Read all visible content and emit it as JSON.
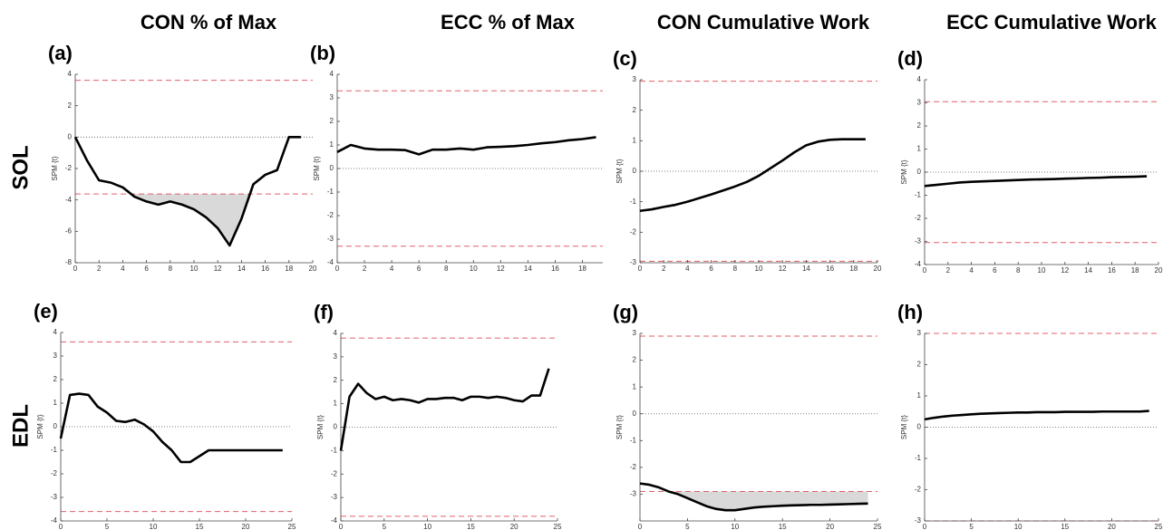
{
  "column_titles": [
    "CON % of Max",
    "ECC % of Max",
    "CON Cumulative Work",
    "ECC Cumulative Work"
  ],
  "row_labels": [
    "SOL",
    "EDL"
  ],
  "chart_data": [
    {
      "type": "line",
      "title": "(a)",
      "ylabel": "SPM {t}",
      "color": "#000000",
      "x": [
        0,
        1,
        2,
        3,
        4,
        5,
        6,
        7,
        8,
        9,
        10,
        11,
        12,
        13,
        14,
        15,
        16,
        17,
        18,
        19
      ],
      "values": [
        0,
        -1.5,
        -2.75,
        -2.9,
        -3.2,
        -3.8,
        -4.1,
        -4.3,
        -4.1,
        -4.3,
        -4.6,
        -5.1,
        -5.8,
        -6.9,
        -5.2,
        -3.0,
        -2.4,
        -2.1,
        0,
        0
      ],
      "xlim": [
        0,
        20
      ],
      "xticks": [
        0,
        2,
        4,
        6,
        8,
        10,
        12,
        14,
        16,
        18,
        20
      ],
      "ylim": [
        -8,
        4
      ],
      "yticks": [
        -8,
        -6,
        -4,
        -2,
        0,
        2,
        4
      ],
      "thresholds": [
        3.62,
        -3.62
      ],
      "reference_line": 0
    },
    {
      "type": "line",
      "title": "(b)",
      "ylabel": "SPM {t}",
      "color": "#000000",
      "x": [
        0,
        1,
        2,
        3,
        4,
        5,
        6,
        7,
        8,
        9,
        10,
        11,
        12,
        13,
        14,
        15,
        16,
        17,
        18,
        19
      ],
      "values": [
        0.7,
        1.0,
        0.85,
        0.8,
        0.8,
        0.78,
        0.6,
        0.8,
        0.8,
        0.85,
        0.8,
        0.9,
        0.92,
        0.95,
        1.0,
        1.07,
        1.12,
        1.2,
        1.25,
        1.33
      ],
      "xlim": [
        0,
        19.5
      ],
      "xticks": [
        0,
        2,
        4,
        6,
        8,
        10,
        12,
        14,
        16,
        18
      ],
      "ylim": [
        -4,
        4
      ],
      "yticks": [
        -4,
        -3,
        -2,
        -1,
        0,
        1,
        2,
        3,
        4
      ],
      "thresholds": [
        3.3,
        -3.3
      ],
      "reference_line": 0
    },
    {
      "type": "line",
      "title": "(c)",
      "ylabel": "SPM {t}",
      "color": "#000000",
      "x": [
        0,
        1,
        2,
        3,
        4,
        5,
        6,
        7,
        8,
        9,
        10,
        11,
        12,
        13,
        14,
        15,
        16,
        17,
        18,
        19
      ],
      "values": [
        -1.3,
        -1.25,
        -1.17,
        -1.1,
        -1.0,
        -0.88,
        -0.76,
        -0.63,
        -0.5,
        -0.35,
        -0.15,
        0.1,
        0.35,
        0.62,
        0.85,
        0.97,
        1.03,
        1.05,
        1.05,
        1.05
      ],
      "xlim": [
        0,
        20
      ],
      "xticks": [
        0,
        2,
        4,
        6,
        8,
        10,
        12,
        14,
        16,
        18,
        20
      ],
      "ylim": [
        -3,
        3
      ],
      "yticks": [
        -3,
        -2,
        -1,
        0,
        1,
        2,
        3
      ],
      "thresholds": [
        2.95,
        -2.95
      ],
      "reference_line": 0
    },
    {
      "type": "line",
      "title": "(d)",
      "ylabel": "SPM {t}",
      "color": "#000000",
      "x": [
        0,
        1,
        2,
        3,
        4,
        5,
        6,
        7,
        8,
        9,
        10,
        11,
        12,
        13,
        14,
        15,
        16,
        17,
        18,
        19
      ],
      "values": [
        -0.6,
        -0.55,
        -0.5,
        -0.45,
        -0.42,
        -0.4,
        -0.38,
        -0.36,
        -0.34,
        -0.32,
        -0.31,
        -0.3,
        -0.28,
        -0.27,
        -0.25,
        -0.24,
        -0.22,
        -0.21,
        -0.2,
        -0.18
      ],
      "xlim": [
        0,
        20
      ],
      "xticks": [
        0,
        2,
        4,
        6,
        8,
        10,
        12,
        14,
        16,
        18,
        20
      ],
      "ylim": [
        -4,
        4
      ],
      "yticks": [
        -4,
        -3,
        -2,
        -1,
        0,
        1,
        2,
        3,
        4
      ],
      "thresholds": [
        3.05,
        -3.05
      ],
      "reference_line": 0
    },
    {
      "type": "line",
      "title": "(e)",
      "ylabel": "SPM {t}",
      "color": "#000000",
      "x": [
        0,
        1,
        2,
        3,
        4,
        5,
        6,
        7,
        8,
        9,
        10,
        11,
        12,
        13,
        14,
        15,
        16,
        17,
        18,
        19,
        20,
        21,
        22,
        23,
        24
      ],
      "values": [
        -0.5,
        1.35,
        1.4,
        1.35,
        0.85,
        0.6,
        0.25,
        0.2,
        0.3,
        0.1,
        -0.2,
        -0.65,
        -1.0,
        -1.5,
        -1.5,
        -1.25,
        -1.0,
        -1.0,
        -1.0,
        -1.0,
        -1.0,
        -1.0,
        -1.0,
        -1.0,
        -1.0
      ],
      "xlim": [
        0,
        25
      ],
      "xticks": [
        0,
        5,
        10,
        15,
        20,
        25
      ],
      "ylim": [
        -4,
        4
      ],
      "yticks": [
        -4,
        -3,
        -2,
        -1,
        0,
        1,
        2,
        3,
        4
      ],
      "thresholds": [
        3.6,
        -3.6
      ],
      "reference_line": 0
    },
    {
      "type": "line",
      "title": "(f)",
      "ylabel": "SPM {t}",
      "color": "#000000",
      "x": [
        0,
        1,
        2,
        3,
        4,
        5,
        6,
        7,
        8,
        9,
        10,
        11,
        12,
        13,
        14,
        15,
        16,
        17,
        18,
        19,
        20,
        21,
        22,
        23,
        24
      ],
      "values": [
        -1.0,
        1.3,
        1.85,
        1.45,
        1.2,
        1.3,
        1.15,
        1.2,
        1.15,
        1.05,
        1.2,
        1.2,
        1.25,
        1.25,
        1.15,
        1.3,
        1.3,
        1.25,
        1.3,
        1.25,
        1.15,
        1.1,
        1.35,
        1.35,
        2.5
      ],
      "xlim": [
        0,
        25
      ],
      "xticks": [
        0,
        5,
        10,
        15,
        20,
        25
      ],
      "ylim": [
        -4,
        4
      ],
      "yticks": [
        -4,
        -3,
        -2,
        -1,
        0,
        1,
        2,
        3,
        4
      ],
      "thresholds": [
        3.8,
        -3.8
      ],
      "reference_line": 0
    },
    {
      "type": "line",
      "title": "(g)",
      "ylabel": "SPM {t}",
      "color": "#000000",
      "x": [
        0,
        1,
        2,
        3,
        4,
        5,
        6,
        7,
        8,
        9,
        10,
        11,
        12,
        13,
        14,
        15,
        16,
        17,
        18,
        19,
        20,
        21,
        22,
        23,
        24
      ],
      "values": [
        -2.6,
        -2.65,
        -2.75,
        -2.9,
        -3.0,
        -3.15,
        -3.3,
        -3.45,
        -3.55,
        -3.6,
        -3.6,
        -3.55,
        -3.5,
        -3.47,
        -3.45,
        -3.43,
        -3.42,
        -3.41,
        -3.4,
        -3.4,
        -3.39,
        -3.38,
        -3.37,
        -3.36,
        -3.35
      ],
      "xlim": [
        0,
        25
      ],
      "xticks": [
        0,
        5,
        10,
        15,
        20,
        25
      ],
      "ylim": [
        -4,
        3
      ],
      "yticks": [
        -3,
        -2,
        -1,
        0,
        1,
        2,
        3
      ],
      "thresholds": [
        2.9,
        -2.9
      ],
      "reference_line": 0
    },
    {
      "type": "line",
      "title": "(h)",
      "ylabel": "SPM {t}",
      "color": "#000000",
      "x": [
        0,
        1,
        2,
        3,
        4,
        5,
        6,
        7,
        8,
        9,
        10,
        11,
        12,
        13,
        14,
        15,
        16,
        17,
        18,
        19,
        20,
        21,
        22,
        23,
        24
      ],
      "values": [
        0.25,
        0.3,
        0.34,
        0.37,
        0.39,
        0.41,
        0.43,
        0.44,
        0.45,
        0.46,
        0.47,
        0.47,
        0.48,
        0.48,
        0.48,
        0.49,
        0.49,
        0.49,
        0.49,
        0.5,
        0.5,
        0.5,
        0.5,
        0.5,
        0.52
      ],
      "xlim": [
        0,
        25
      ],
      "xticks": [
        0,
        5,
        10,
        15,
        20,
        25
      ],
      "ylim": [
        -3,
        3
      ],
      "yticks": [
        -3,
        -2,
        -1,
        0,
        1,
        2,
        3
      ],
      "thresholds": [
        3.0,
        -3.0
      ],
      "reference_line": 0
    }
  ]
}
